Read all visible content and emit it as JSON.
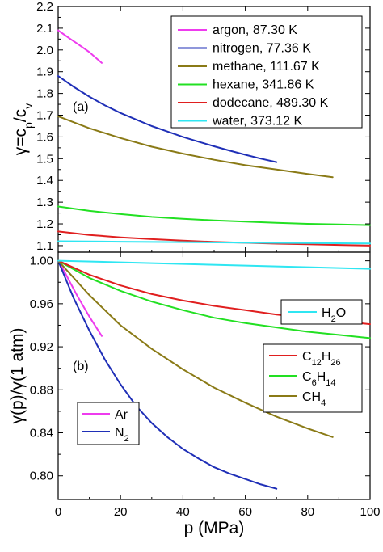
{
  "colors": {
    "argon": "#ee3bee",
    "nitrogen": "#1f2fb7",
    "methane": "#8a7a16",
    "hexane": "#22e022",
    "dodecane": "#e01f1f",
    "water": "#2fe6f2"
  },
  "chart_data": [
    {
      "type": "line",
      "panel_label": "(a)",
      "xlabel": "",
      "ylabel_html": "γ=c_p/c_v",
      "ylabel_parts": {
        "main": "γ=c",
        "sub1": "p",
        "mid": "/c",
        "sub2": "v"
      },
      "xlim": [
        0,
        100
      ],
      "ylim": [
        1.07,
        2.2
      ],
      "xticks": [
        0,
        20,
        40,
        60,
        80,
        100
      ],
      "yticks": [
        1.1,
        1.2,
        1.3,
        1.4,
        1.5,
        1.6,
        1.7,
        1.8,
        1.9,
        2.0,
        2.1,
        2.2
      ],
      "ytick_labels": [
        "1.1",
        "1.2",
        "1.3",
        "1.4",
        "1.5",
        "1.6",
        "1.7",
        "1.8",
        "1.9",
        "2.0",
        "2.1",
        "2.2"
      ],
      "legend_position": "top-right",
      "series": [
        {
          "name": "argon, 87.30 K",
          "color_key": "argon",
          "x": [
            0,
            2,
            4,
            6,
            8,
            10,
            12,
            14
          ],
          "y": [
            2.09,
            2.07,
            2.05,
            2.03,
            2.01,
            1.99,
            1.965,
            1.94
          ]
        },
        {
          "name": "nitrogen, 77.36 K",
          "color_key": "nitrogen",
          "x": [
            0,
            5,
            10,
            15,
            20,
            25,
            30,
            35,
            40,
            45,
            50,
            55,
            60,
            65,
            70
          ],
          "y": [
            1.88,
            1.83,
            1.785,
            1.745,
            1.71,
            1.68,
            1.65,
            1.625,
            1.6,
            1.578,
            1.557,
            1.537,
            1.518,
            1.5,
            1.484
          ]
        },
        {
          "name": "methane, 111.67 K",
          "color_key": "methane",
          "x": [
            0,
            10,
            20,
            30,
            40,
            50,
            60,
            70,
            80,
            88
          ],
          "y": [
            1.695,
            1.64,
            1.595,
            1.555,
            1.523,
            1.495,
            1.47,
            1.45,
            1.43,
            1.415
          ]
        },
        {
          "name": "hexane, 341.86 K",
          "color_key": "hexane",
          "x": [
            0,
            10,
            20,
            30,
            40,
            50,
            60,
            70,
            80,
            90,
            100
          ],
          "y": [
            1.28,
            1.26,
            1.245,
            1.232,
            1.223,
            1.216,
            1.21,
            1.205,
            1.2,
            1.197,
            1.194
          ]
        },
        {
          "name": "dodecane, 489.30 K",
          "color_key": "dodecane",
          "x": [
            0,
            10,
            20,
            30,
            40,
            50,
            60,
            70,
            80,
            90,
            100
          ],
          "y": [
            1.165,
            1.149,
            1.138,
            1.13,
            1.123,
            1.117,
            1.113,
            1.109,
            1.106,
            1.103,
            1.1
          ]
        },
        {
          "name": "water, 373.12 K",
          "color_key": "water",
          "x": [
            0,
            20,
            40,
            60,
            80,
            100
          ],
          "y": [
            1.12,
            1.118,
            1.116,
            1.114,
            1.112,
            1.11
          ]
        }
      ]
    },
    {
      "type": "line",
      "panel_label": "(b)",
      "xlabel": "p (MPa)",
      "ylabel": "γ(p)/γ(1 atm)",
      "xlim": [
        0,
        100
      ],
      "ylim": [
        0.778,
        1.008
      ],
      "xticks": [
        0,
        20,
        40,
        60,
        80,
        100
      ],
      "xtick_labels": [
        "0",
        "20",
        "40",
        "60",
        "80",
        "100"
      ],
      "yticks": [
        0.8,
        0.84,
        0.88,
        0.92,
        0.96,
        1.0
      ],
      "ytick_labels": [
        "0.80",
        "0.84",
        "0.88",
        "0.92",
        "0.96",
        "1.00"
      ],
      "series": [
        {
          "name": "Ar",
          "color_key": "argon",
          "x": [
            0,
            2,
            4,
            6,
            8,
            10,
            12,
            14
          ],
          "y": [
            1.0,
            0.99,
            0.979,
            0.968,
            0.958,
            0.948,
            0.939,
            0.93
          ]
        },
        {
          "name": "N2",
          "name_parts": {
            "main": "N",
            "sub": "2"
          },
          "color_key": "nitrogen",
          "x": [
            0,
            5,
            10,
            15,
            20,
            25,
            30,
            35,
            40,
            45,
            50,
            55,
            60,
            65,
            70
          ],
          "y": [
            1.0,
            0.965,
            0.935,
            0.908,
            0.885,
            0.865,
            0.849,
            0.836,
            0.825,
            0.816,
            0.808,
            0.802,
            0.797,
            0.792,
            0.788
          ]
        },
        {
          "name": "CH4",
          "name_parts": {
            "main": "CH",
            "sub": "4"
          },
          "color_key": "methane",
          "x": [
            0,
            10,
            20,
            30,
            40,
            50,
            60,
            70,
            80,
            88
          ],
          "y": [
            1.0,
            0.968,
            0.94,
            0.918,
            0.899,
            0.882,
            0.868,
            0.855,
            0.844,
            0.836
          ]
        },
        {
          "name": "C6H14",
          "name_parts": {
            "main": "C",
            "sub": "6",
            "main2": "H",
            "sub2": "14"
          },
          "color_key": "hexane",
          "x": [
            0,
            10,
            20,
            30,
            40,
            50,
            60,
            70,
            80,
            90,
            100
          ],
          "y": [
            1.0,
            0.984,
            0.972,
            0.962,
            0.954,
            0.947,
            0.942,
            0.938,
            0.934,
            0.931,
            0.928
          ]
        },
        {
          "name": "C12H26",
          "name_parts": {
            "main": "C",
            "sub": "12",
            "main2": "H",
            "sub2": "26"
          },
          "color_key": "dodecane",
          "x": [
            0,
            10,
            20,
            30,
            40,
            50,
            60,
            70,
            80,
            90,
            100
          ],
          "y": [
            1.0,
            0.987,
            0.977,
            0.969,
            0.963,
            0.958,
            0.954,
            0.95,
            0.947,
            0.944,
            0.941
          ]
        },
        {
          "name": "H2O",
          "name_parts": {
            "main": "H",
            "sub": "2",
            "main2": "O"
          },
          "color_key": "water",
          "x": [
            0,
            20,
            40,
            60,
            80,
            100
          ],
          "y": [
            1.0,
            0.9985,
            0.997,
            0.9955,
            0.994,
            0.9925
          ]
        }
      ],
      "legends": [
        {
          "group": "water",
          "entries": [
            "H2O"
          ],
          "position": "upper-right"
        },
        {
          "group": "alkanes",
          "entries": [
            "C12H26",
            "C6H14",
            "CH4"
          ],
          "position": "right-middle"
        },
        {
          "group": "light",
          "entries": [
            "Ar",
            "N2"
          ],
          "position": "lower-left"
        }
      ]
    }
  ]
}
